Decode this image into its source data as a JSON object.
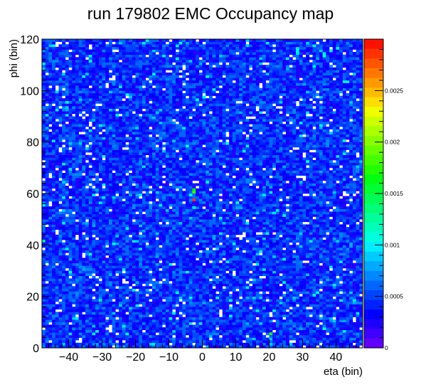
{
  "chart_data": {
    "type": "heatmap",
    "title": "run 179802 EMC  Occupancy map",
    "xlabel": "eta (bin)",
    "ylabel": "phi (bin)",
    "xlim": [
      -48,
      48
    ],
    "ylim": [
      0,
      120
    ],
    "x_ticks": [
      -40,
      -30,
      -20,
      -10,
      0,
      10,
      20,
      30,
      40
    ],
    "y_ticks": [
      0,
      20,
      40,
      60,
      80,
      100,
      120
    ],
    "z_range": [
      0,
      0.003
    ],
    "z_ticks": [
      {
        "value": 0,
        "label": "0"
      },
      {
        "value": 0.0005,
        "label": "0.0005"
      },
      {
        "value": 0.001,
        "label": "0.001"
      },
      {
        "value": 0.0015,
        "label": "0.0015"
      },
      {
        "value": 0.002,
        "label": "0.002"
      },
      {
        "value": 0.0025,
        "label": "0.0025"
      }
    ],
    "bins": {
      "nx": 96,
      "ny": 120
    },
    "typical_occupancy": 0.00045,
    "palette": [
      "#6100ff",
      "#4000ff",
      "#1f00ff",
      "#0000ff",
      "#0022ff",
      "#0044ff",
      "#0066ff",
      "#0088ff",
      "#00aaff",
      "#00ccff",
      "#00eeff",
      "#00ffdd",
      "#00ffbb",
      "#00ff99",
      "#00ff77",
      "#00ff55",
      "#00ff33",
      "#00ff11",
      "#22ff00",
      "#44ff00",
      "#66ff00",
      "#88ff00",
      "#aaff00",
      "#ccff00",
      "#eeff00",
      "#ffdd00",
      "#ffbb00",
      "#ff9900",
      "#ff7700",
      "#ff5500",
      "#ff3300",
      "#ff1100"
    ],
    "hot_cells": [
      {
        "eta": -3,
        "phi": 57,
        "value": 0.0029
      },
      {
        "eta": -3,
        "phi": 60,
        "value": 0.0018
      },
      {
        "eta": -3,
        "phi": 61,
        "value": 0.0016
      },
      {
        "eta": 20,
        "phi": 5,
        "value": 0.0017
      },
      {
        "eta": -48,
        "phi": 41,
        "value": 0.0014
      },
      {
        "eta": -3,
        "phi": 54,
        "value": 0.0012
      },
      {
        "eta": -31,
        "phi": 18,
        "value": 0.0013
      },
      {
        "eta": 42,
        "phi": 80,
        "value": 0.0012
      }
    ],
    "grid": false,
    "legend": "color scale on the right"
  }
}
